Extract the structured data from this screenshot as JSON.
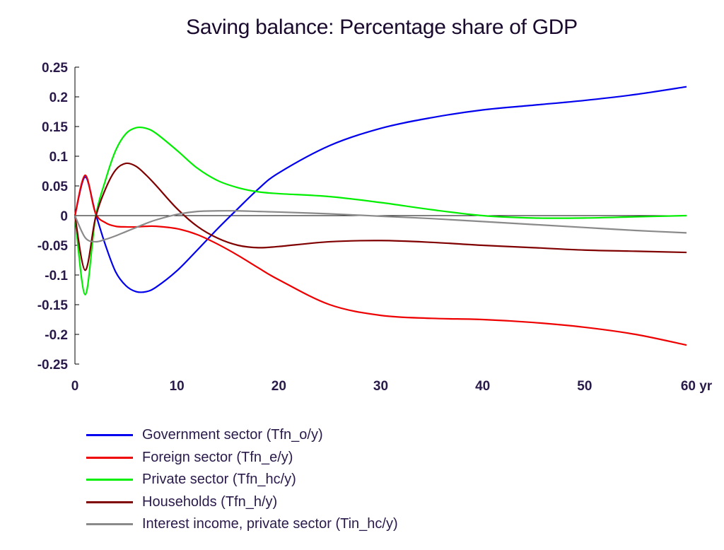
{
  "chart_data": {
    "type": "line",
    "title": "Saving balance: Percentage share of GDP",
    "xlabel": "",
    "ylabel": "",
    "xlim": [
      0,
      60
    ],
    "ylim": [
      -0.25,
      0.25
    ],
    "x_ticks": [
      0,
      10,
      20,
      30,
      40,
      50,
      60
    ],
    "x_tick_labels": [
      "0",
      "10",
      "20",
      "30",
      "40",
      "50",
      "60 yr"
    ],
    "y_ticks": [
      0.25,
      0.2,
      0.15,
      0.1,
      0.05,
      0,
      -0.05,
      -0.1,
      -0.15,
      -0.2,
      -0.25
    ],
    "y_tick_labels": [
      "0.25",
      "0.2",
      "0.15",
      "0.1",
      "0.05",
      "0",
      "-0.05",
      "-0.1",
      "-0.15",
      "-0.2",
      "-0.25"
    ],
    "grid": false,
    "zero_line": true,
    "legend_position": "bottom-left",
    "series": [
      {
        "name": "Government sector (Tfn_o/y)",
        "color": "#0000ee",
        "x": [
          0,
          1,
          2,
          3,
          4,
          5,
          6,
          7,
          8,
          10,
          12,
          14,
          16,
          18,
          20,
          25,
          30,
          35,
          40,
          45,
          50,
          55,
          60
        ],
        "y": [
          0,
          0.065,
          0.005,
          -0.05,
          -0.095,
          -0.118,
          -0.128,
          -0.128,
          -0.12,
          -0.093,
          -0.058,
          -0.022,
          0.012,
          0.045,
          0.072,
          0.118,
          0.147,
          0.165,
          0.178,
          0.186,
          0.194,
          0.204,
          0.217
        ]
      },
      {
        "name": "Foreign sector (Tfn_e/y)",
        "color": "#ee0000",
        "x": [
          0,
          1,
          2,
          3,
          4,
          5,
          6,
          7,
          8,
          10,
          12,
          14,
          16,
          18,
          20,
          25,
          30,
          35,
          40,
          45,
          50,
          55,
          60
        ],
        "y": [
          0,
          0.068,
          0.005,
          -0.012,
          -0.018,
          -0.019,
          -0.019,
          -0.018,
          -0.018,
          -0.022,
          -0.032,
          -0.048,
          -0.067,
          -0.088,
          -0.108,
          -0.15,
          -0.168,
          -0.173,
          -0.175,
          -0.18,
          -0.188,
          -0.2,
          -0.218
        ]
      },
      {
        "name": "Private sector (Tfn_hc/y)",
        "color": "#00ee00",
        "x": [
          0,
          1,
          2,
          3,
          4,
          5,
          6,
          7,
          8,
          10,
          12,
          14,
          16,
          18,
          20,
          25,
          30,
          35,
          40,
          45,
          50,
          55,
          60
        ],
        "y": [
          0,
          -0.133,
          -0.005,
          0.06,
          0.11,
          0.138,
          0.148,
          0.147,
          0.138,
          0.11,
          0.08,
          0.059,
          0.047,
          0.04,
          0.037,
          0.032,
          0.022,
          0.01,
          0.0,
          -0.004,
          -0.004,
          -0.002,
          0.0
        ]
      },
      {
        "name": "Households (Tfn_h/y)",
        "color": "#800000",
        "x": [
          0,
          1,
          2,
          3,
          4,
          5,
          6,
          7,
          8,
          10,
          12,
          14,
          16,
          18,
          20,
          25,
          30,
          35,
          40,
          45,
          50,
          55,
          60
        ],
        "y": [
          0,
          -0.092,
          -0.005,
          0.045,
          0.077,
          0.088,
          0.083,
          0.068,
          0.05,
          0.012,
          -0.018,
          -0.038,
          -0.05,
          -0.054,
          -0.052,
          -0.044,
          -0.042,
          -0.045,
          -0.05,
          -0.054,
          -0.058,
          -0.06,
          -0.062
        ]
      },
      {
        "name": "Interest income, private sector (Tin_hc/y)",
        "color": "#8a8a8a",
        "x": [
          0,
          1,
          2,
          3,
          4,
          5,
          6,
          7,
          8,
          10,
          12,
          14,
          16,
          18,
          20,
          25,
          30,
          35,
          40,
          45,
          50,
          55,
          60
        ],
        "y": [
          0,
          -0.037,
          -0.044,
          -0.04,
          -0.034,
          -0.027,
          -0.02,
          -0.013,
          -0.007,
          0.002,
          0.007,
          0.008,
          0.008,
          0.007,
          0.006,
          0.003,
          -0.001,
          -0.005,
          -0.01,
          -0.015,
          -0.02,
          -0.025,
          -0.029
        ]
      }
    ]
  }
}
